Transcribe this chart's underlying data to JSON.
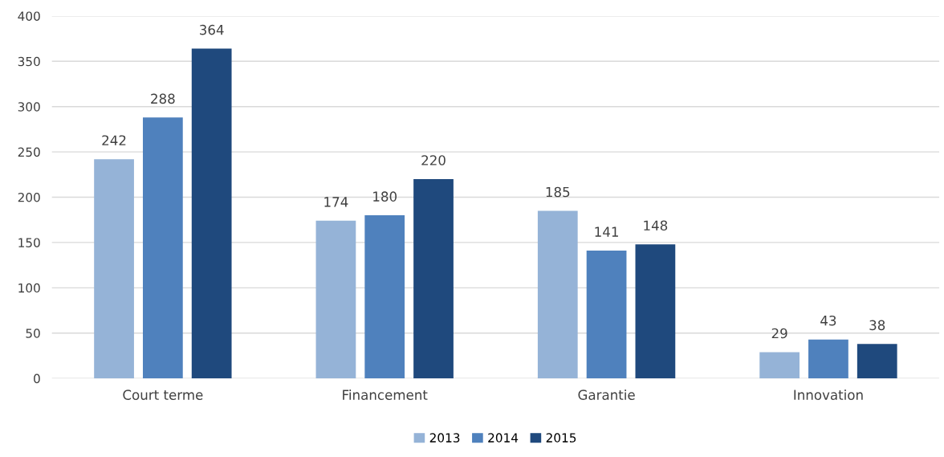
{
  "chart_data": {
    "type": "bar",
    "categories": [
      "Court terme",
      "Financement",
      "Garantie",
      "Innovation"
    ],
    "series": [
      {
        "name": "2013",
        "color": "#95b3d7",
        "values": [
          242,
          174,
          185,
          29
        ]
      },
      {
        "name": "2014",
        "color": "#4f81bd",
        "values": [
          288,
          180,
          141,
          43
        ]
      },
      {
        "name": "2015",
        "color": "#1f497d",
        "values": [
          364,
          220,
          148,
          38
        ]
      }
    ],
    "ylim": [
      0,
      400
    ],
    "yticks": [
      0,
      50,
      100,
      150,
      200,
      250,
      300,
      350,
      400
    ],
    "grid": "y",
    "legend": "bottom",
    "data_labels": true
  }
}
